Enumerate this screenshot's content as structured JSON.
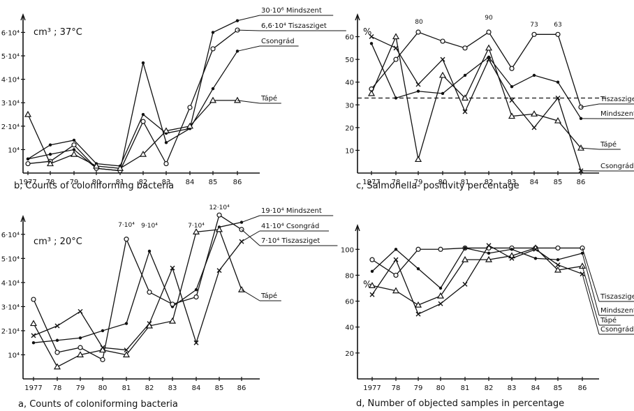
{
  "chart_data": [
    {
      "id": "b",
      "type": "line",
      "caption": "b, Counts of coloniforming bacteria",
      "unit": "cm³ ; 37°C",
      "x": [
        "1977",
        "78",
        "79",
        "80",
        "81",
        "82",
        "83",
        "84",
        "85",
        "86"
      ],
      "y_ticks": [
        "10⁴",
        "2·10⁴",
        "3·10⁴",
        "4·10⁴",
        "5·10⁴",
        "6·10⁴"
      ],
      "ylim": [
        0,
        6.4
      ],
      "series": [
        {
          "name": "Mindszent",
          "label": "30·10⁶ Mindszent",
          "marker": "dot",
          "values": [
            0.6,
            0.8,
            1.0,
            0.2,
            0.1,
            4.7,
            1.3,
            1.9,
            6.0,
            6.5
          ]
        },
        {
          "name": "Tiszasziget",
          "label": "6,6·10⁴ Tiszasziget",
          "marker": "circle",
          "values": [
            0.4,
            0.5,
            1.2,
            0.2,
            0.1,
            2.2,
            0.4,
            2.8,
            5.3,
            6.1
          ]
        },
        {
          "name": "Csongrád",
          "label": "Csongrád",
          "marker": "dot",
          "values": [
            0.6,
            1.2,
            1.4,
            0.4,
            0.3,
            2.5,
            1.7,
            1.9,
            3.6,
            5.2
          ]
        },
        {
          "name": "Tápé",
          "label": "Tápé",
          "marker": "triangle",
          "values": [
            2.5,
            0.4,
            0.8,
            0.3,
            0.2,
            0.8,
            1.8,
            2.0,
            3.1,
            3.1
          ]
        }
      ]
    },
    {
      "id": "c",
      "type": "line",
      "caption": "c, Salmonella- positivity percentage",
      "unit": "%",
      "x": [
        "1977",
        "78",
        "79",
        "80",
        "81",
        "82",
        "83",
        "84",
        "85",
        "86"
      ],
      "y_ticks": [
        "10",
        "20",
        "30",
        "40",
        "50",
        "60"
      ],
      "ylim": [
        0,
        66
      ],
      "reference_line": 33,
      "annotations": [
        "80",
        "90",
        "73",
        "63"
      ],
      "series": [
        {
          "name": "Tiszasziget",
          "label": "Tiszasziget",
          "marker": "circle",
          "values": [
            37,
            50,
            62,
            58,
            55,
            62,
            46,
            61,
            61,
            29
          ]
        },
        {
          "name": "Mindszent",
          "label": "Mindszent",
          "marker": "dot",
          "values": [
            57,
            33,
            36,
            35,
            43,
            51,
            38,
            43,
            40,
            24
          ]
        },
        {
          "name": "Tápé",
          "label": "Tápé",
          "marker": "triangle",
          "values": [
            35,
            60,
            6,
            43,
            33,
            55,
            25,
            26,
            23,
            11
          ]
        },
        {
          "name": "Csongrád",
          "label": "Csongrád",
          "marker": "cross",
          "values": [
            60,
            55,
            39,
            50,
            27,
            50,
            32,
            20,
            33,
            1
          ]
        }
      ]
    },
    {
      "id": "a",
      "type": "line",
      "caption": "a, Counts of coloniforming bacteria",
      "unit": "cm³ ; 20°C",
      "x": [
        "1977",
        "78",
        "79",
        "80",
        "81",
        "82",
        "83",
        "84",
        "85",
        "86"
      ],
      "y_ticks": [
        "10⁴",
        "2·10⁴",
        "3·10⁴",
        "4·10⁴",
        "5·10⁴",
        "6·10⁴"
      ],
      "ylim": [
        0,
        6.4
      ],
      "annotations": [
        "7·10⁴",
        "9·10⁴",
        "7·10⁴",
        "12·10⁴"
      ],
      "series": [
        {
          "name": "Mindszent",
          "label": "19·10⁴ Mindszent",
          "marker": "dot",
          "values": [
            1.5,
            1.6,
            1.7,
            2.0,
            2.3,
            5.3,
            3.0,
            3.7,
            6.3,
            6.5
          ]
        },
        {
          "name": "Csongrád",
          "label": "41·10⁴ Csongrád",
          "marker": "cross",
          "values": [
            1.8,
            2.2,
            2.8,
            1.3,
            1.2,
            2.3,
            4.6,
            1.5,
            4.5,
            5.7
          ]
        },
        {
          "name": "Tiszasziget",
          "label": "7·10⁴ Tiszasziget",
          "marker": "circle",
          "values": [
            3.3,
            1.1,
            1.3,
            0.8,
            5.8,
            3.6,
            3.1,
            3.4,
            6.8,
            6.2
          ]
        },
        {
          "name": "Tápé",
          "label": "Tápé",
          "marker": "triangle",
          "values": [
            2.3,
            0.5,
            1.0,
            1.2,
            1.0,
            2.2,
            2.4,
            6.1,
            6.2,
            3.7
          ]
        }
      ]
    },
    {
      "id": "d",
      "type": "line",
      "caption": "d, Number of objected samples in percentage",
      "unit": "%",
      "x": [
        "1977",
        "78",
        "79",
        "80",
        "81",
        "82",
        "83",
        "84",
        "85",
        "86"
      ],
      "y_ticks": [
        "20",
        "40",
        "60",
        "80",
        "100"
      ],
      "ylim": [
        0,
        112
      ],
      "series": [
        {
          "name": "Tiszasziget",
          "label": "Tiszasziget",
          "marker": "circle",
          "values": [
            92,
            80,
            100,
            100,
            101,
            101,
            101,
            101,
            101,
            101
          ]
        },
        {
          "name": "Mindszent",
          "label": "Mindszent",
          "marker": "dot",
          "values": [
            83,
            100,
            85,
            70,
            101,
            97,
            100,
            93,
            92,
            97
          ]
        },
        {
          "name": "Tápé",
          "label": "Tápé",
          "marker": "triangle",
          "values": [
            72,
            68,
            57,
            64,
            92,
            92,
            95,
            101,
            84,
            87
          ]
        },
        {
          "name": "Csongrád",
          "label": "Csongrád",
          "marker": "cross",
          "values": [
            65,
            92,
            50,
            58,
            73,
            103,
            93,
            100,
            88,
            81
          ]
        }
      ]
    }
  ]
}
